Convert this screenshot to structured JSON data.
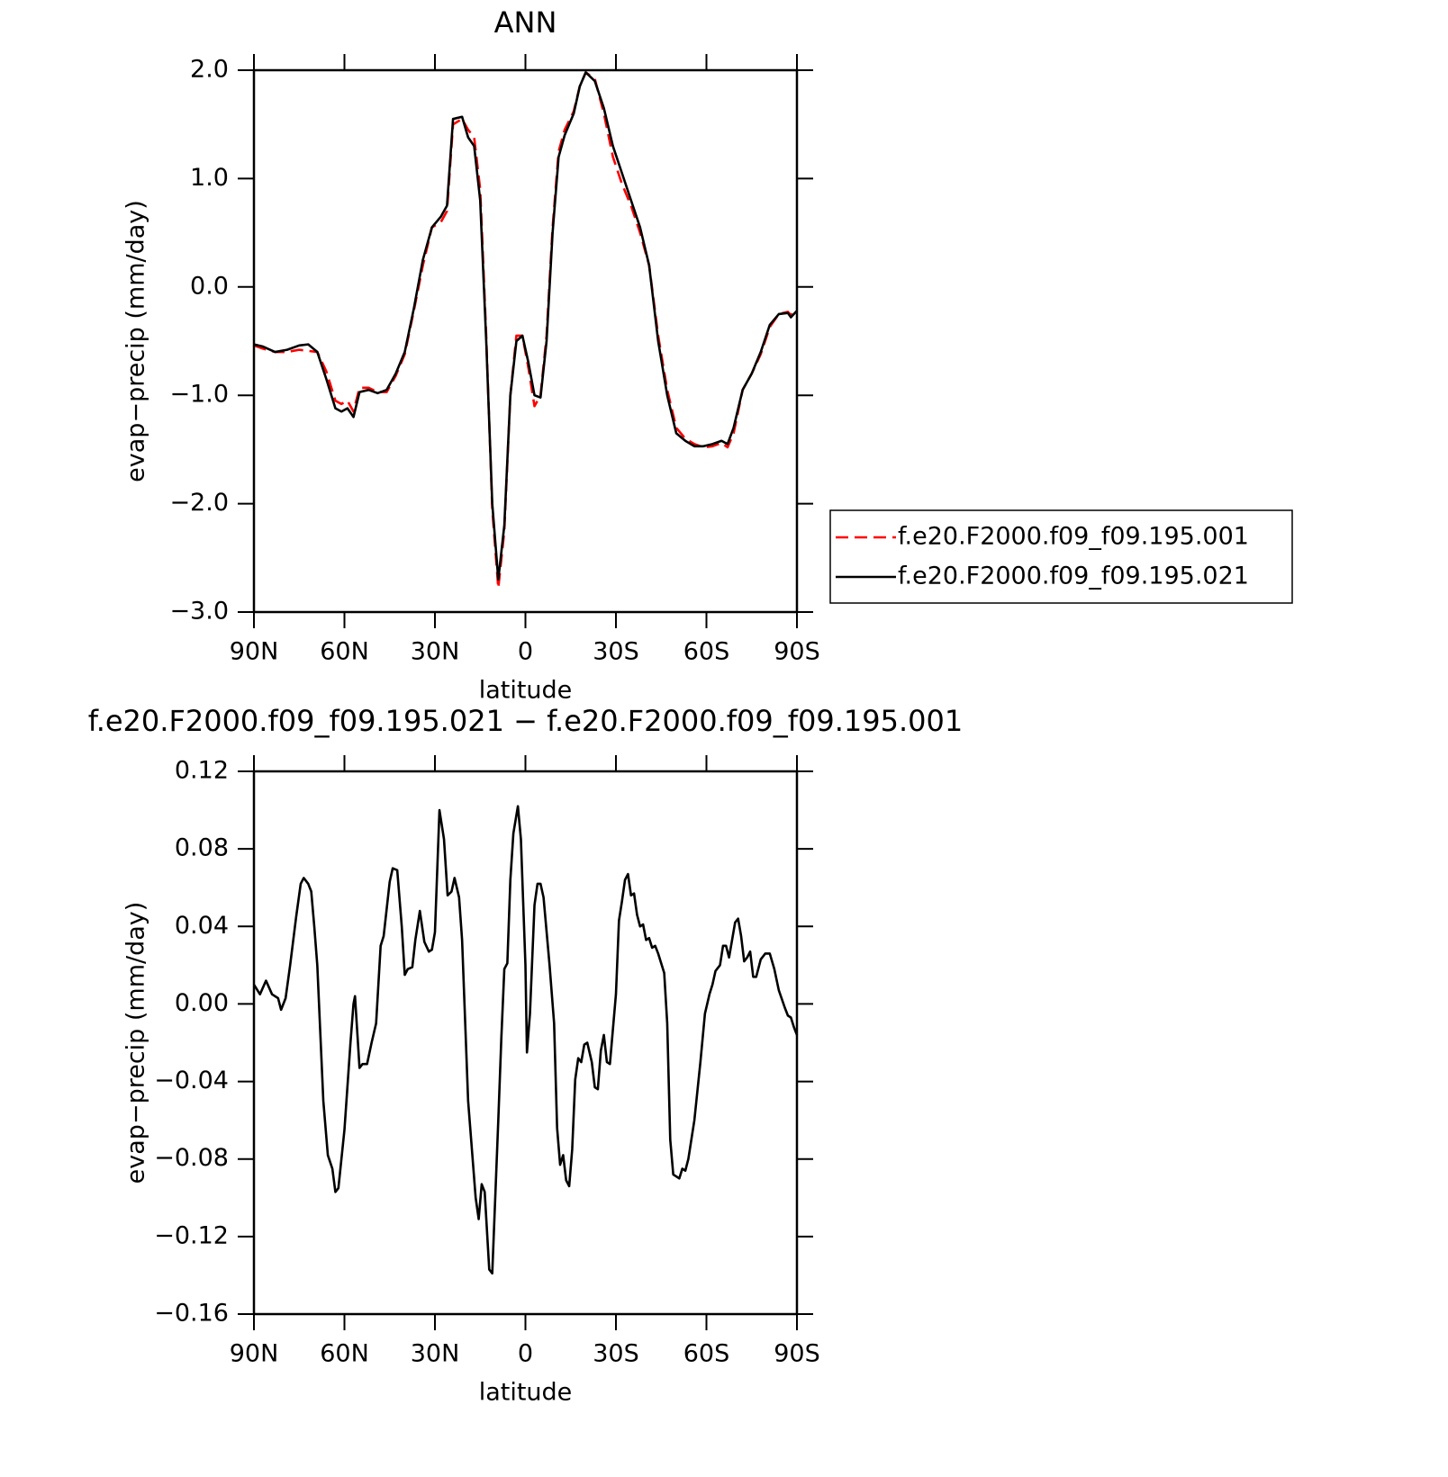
{
  "chart_data": [
    {
      "type": "line",
      "title": "ANN",
      "xlabel": "latitude",
      "ylabel": "evap−precip (mm/day)",
      "x": [
        90,
        87,
        83,
        79,
        75,
        72,
        69,
        66,
        63,
        61,
        59,
        57,
        55,
        52,
        49,
        46,
        43,
        40,
        37,
        34,
        31,
        28,
        26,
        24,
        21,
        19,
        17,
        15,
        13,
        11,
        9,
        7,
        5,
        3,
        1,
        -1,
        -3,
        -5,
        -7,
        -9,
        -11,
        -13,
        -16,
        -18,
        -20,
        -23,
        -26,
        -29,
        -32,
        -35,
        -38,
        -41,
        -44,
        -47,
        -50,
        -53,
        -56,
        -59,
        -62,
        -65,
        -67,
        -69,
        -72,
        -75,
        -78,
        -81,
        -84,
        -87,
        -88,
        -90
      ],
      "series": [
        {
          "name": "f.e20.F2000.f09_f09.195.001",
          "color": "#ff0000",
          "line_style": "dashed",
          "values": [
            -0.54,
            -0.57,
            -0.6,
            -0.6,
            -0.58,
            -0.59,
            -0.6,
            -0.78,
            -1.05,
            -1.08,
            -1.05,
            -1.15,
            -0.93,
            -0.93,
            -0.97,
            -0.97,
            -0.82,
            -0.62,
            -0.22,
            0.2,
            0.55,
            0.6,
            0.7,
            1.5,
            1.55,
            1.45,
            1.38,
            0.9,
            -0.45,
            -2.05,
            -2.78,
            -2.25,
            -1.0,
            -0.45,
            -0.45,
            -0.75,
            -1.1,
            -1.0,
            -0.45,
            0.55,
            1.25,
            1.45,
            1.62,
            1.85,
            1.98,
            1.92,
            1.6,
            1.2,
            0.95,
            0.75,
            0.5,
            0.2,
            -0.45,
            -0.95,
            -1.3,
            -1.4,
            -1.45,
            -1.48,
            -1.47,
            -1.44,
            -1.48,
            -1.35,
            -0.95,
            -0.8,
            -0.62,
            -0.37,
            -0.25,
            -0.23,
            -0.26,
            -0.2
          ]
        },
        {
          "name": "f.e20.F2000.f09_f09.195.021",
          "color": "#000000",
          "line_style": "solid",
          "values": [
            -0.53,
            -0.55,
            -0.6,
            -0.58,
            -0.54,
            -0.53,
            -0.6,
            -0.85,
            -1.12,
            -1.15,
            -1.12,
            -1.2,
            -0.97,
            -0.95,
            -0.98,
            -0.95,
            -0.8,
            -0.6,
            -0.2,
            0.25,
            0.55,
            0.65,
            0.75,
            1.55,
            1.57,
            1.38,
            1.3,
            0.8,
            -0.5,
            -2.0,
            -2.7,
            -2.2,
            -1.0,
            -0.5,
            -0.45,
            -0.7,
            -1.0,
            -1.02,
            -0.5,
            0.5,
            1.2,
            1.4,
            1.6,
            1.85,
            1.98,
            1.9,
            1.65,
            1.3,
            1.05,
            0.8,
            0.55,
            0.2,
            -0.5,
            -1.0,
            -1.35,
            -1.42,
            -1.47,
            -1.47,
            -1.45,
            -1.42,
            -1.45,
            -1.3,
            -0.95,
            -0.8,
            -0.6,
            -0.35,
            -0.25,
            -0.24,
            -0.28,
            -0.22
          ]
        }
      ],
      "xlim": [
        90,
        -90
      ],
      "xticks": [
        {
          "value": 90,
          "label": "90N"
        },
        {
          "value": 60,
          "label": "60N"
        },
        {
          "value": 30,
          "label": "30N"
        },
        0,
        {
          "value": -30,
          "label": "30S"
        },
        {
          "value": -60,
          "label": "60S"
        },
        {
          "value": -90,
          "label": "90S"
        }
      ],
      "ylim": [
        -3,
        2
      ],
      "yticks": [
        {
          "value": -3,
          "label": "−3.0"
        },
        {
          "value": -2,
          "label": "−2.0"
        },
        {
          "value": -1,
          "label": "−1.0"
        },
        {
          "value": 0,
          "label": "0.0"
        },
        {
          "value": 1,
          "label": "1.0"
        },
        {
          "value": 2,
          "label": "2.0"
        }
      ],
      "legend": "right",
      "grid": false
    },
    {
      "type": "line",
      "title": "f.e20.F2000.f09_f09.195.021 − f.e20.F2000.f09_f09.195.001",
      "xlabel": "latitude",
      "ylabel": "evap−precip (mm/day)",
      "x": [
        90,
        88,
        86,
        84,
        82,
        81,
        79.5,
        78,
        76,
        74.5,
        73.5,
        72,
        71,
        70,
        69,
        67,
        65.5,
        64,
        63,
        62,
        60,
        58,
        57,
        56.5,
        55,
        54,
        52.5,
        51,
        49.5,
        48,
        47,
        45,
        44,
        42.5,
        41,
        40,
        39,
        37.5,
        36.5,
        35,
        33.5,
        32,
        31,
        30,
        28.5,
        27,
        25.8,
        24.5,
        23.5,
        22,
        21,
        19,
        18,
        16.5,
        15.5,
        14.5,
        13.5,
        12,
        11,
        9,
        8,
        7,
        6,
        5,
        4,
        2.5,
        1.5,
        0,
        -0.5,
        -1.5,
        -3,
        -4,
        -5,
        -6,
        -8,
        -9.5,
        -10.5,
        -11.5,
        -12.5,
        -13.5,
        -14.5,
        -15.5,
        -16.5,
        -17.5,
        -18.5,
        -19.5,
        -20.5,
        -22,
        -23,
        -24,
        -25,
        -26,
        -27,
        -28,
        -30,
        -31,
        -32,
        -33,
        -34,
        -35,
        -36,
        -37,
        -38,
        -39,
        -40,
        -41,
        -42,
        -43,
        -44,
        -46,
        -47,
        -48,
        -49,
        -51,
        -52,
        -53,
        -54,
        -56,
        -58,
        -59.5,
        -61,
        -62,
        -63,
        -64.5,
        -65.5,
        -66.5,
        -67.5,
        -68.5,
        -69.5,
        -70.5,
        -71.5,
        -72.5,
        -73.5,
        -74.5,
        -75.5,
        -76.5,
        -78,
        -79.5,
        -81,
        -82.5,
        -84,
        -86,
        -87,
        -88,
        -89,
        -90
      ],
      "series": [
        {
          "color": "#000000",
          "line_style": "solid",
          "values": [
            0.01,
            0.005,
            0.012,
            0.005,
            0.003,
            -0.003,
            0.003,
            0.02,
            0.045,
            0.062,
            0.065,
            0.062,
            0.058,
            0.04,
            0.02,
            -0.05,
            -0.078,
            -0.085,
            -0.097,
            -0.095,
            -0.065,
            -0.02,
            0.0,
            0.004,
            -0.033,
            -0.031,
            -0.031,
            -0.02,
            -0.01,
            0.03,
            0.035,
            0.063,
            0.07,
            0.069,
            0.04,
            0.015,
            0.018,
            0.019,
            0.033,
            0.048,
            0.032,
            0.027,
            0.028,
            0.037,
            0.1,
            0.085,
            0.056,
            0.058,
            0.065,
            0.055,
            0.033,
            -0.05,
            -0.07,
            -0.1,
            -0.111,
            -0.093,
            -0.097,
            -0.137,
            -0.139,
            -0.06,
            -0.018,
            0.018,
            0.021,
            0.064,
            0.088,
            0.102,
            0.085,
            0.02,
            -0.025,
            -0.005,
            0.051,
            0.062,
            0.062,
            0.055,
            0.02,
            -0.01,
            -0.064,
            -0.083,
            -0.078,
            -0.091,
            -0.094,
            -0.075,
            -0.039,
            -0.028,
            -0.03,
            -0.021,
            -0.02,
            -0.03,
            -0.043,
            -0.044,
            -0.024,
            -0.016,
            -0.03,
            -0.031,
            0.005,
            0.043,
            0.053,
            0.064,
            0.067,
            0.056,
            0.057,
            0.046,
            0.04,
            0.041,
            0.033,
            0.034,
            0.029,
            0.03,
            0.026,
            0.016,
            -0.01,
            -0.07,
            -0.088,
            -0.09,
            -0.085,
            -0.086,
            -0.08,
            -0.06,
            -0.03,
            -0.005,
            0.005,
            0.01,
            0.017,
            0.02,
            0.03,
            0.03,
            0.024,
            0.033,
            0.042,
            0.044,
            0.035,
            0.022,
            0.024,
            0.027,
            0.014,
            0.014,
            0.023,
            0.026,
            0.026,
            0.018,
            0.007,
            -0.002,
            -0.006,
            -0.007,
            -0.012,
            -0.016
          ]
        }
      ],
      "xlim": [
        90,
        -90
      ],
      "xticks": [
        {
          "value": 90,
          "label": "90N"
        },
        {
          "value": 60,
          "label": "60N"
        },
        {
          "value": 30,
          "label": "30N"
        },
        0,
        {
          "value": -30,
          "label": "30S"
        },
        {
          "value": -60,
          "label": "60S"
        },
        {
          "value": -90,
          "label": "90S"
        }
      ],
      "ylim": [
        -0.16,
        0.12
      ],
      "yticks": [
        {
          "value": -0.16,
          "label": "−0.16"
        },
        {
          "value": -0.12,
          "label": "−0.12"
        },
        {
          "value": -0.08,
          "label": "−0.08"
        },
        {
          "value": -0.04,
          "label": "−0.04"
        },
        {
          "value": 0,
          "label": "0.00"
        },
        {
          "value": 0.04,
          "label": "0.04"
        },
        {
          "value": 0.08,
          "label": "0.08"
        },
        {
          "value": 0.12,
          "label": "0.12"
        }
      ],
      "grid": false
    }
  ]
}
